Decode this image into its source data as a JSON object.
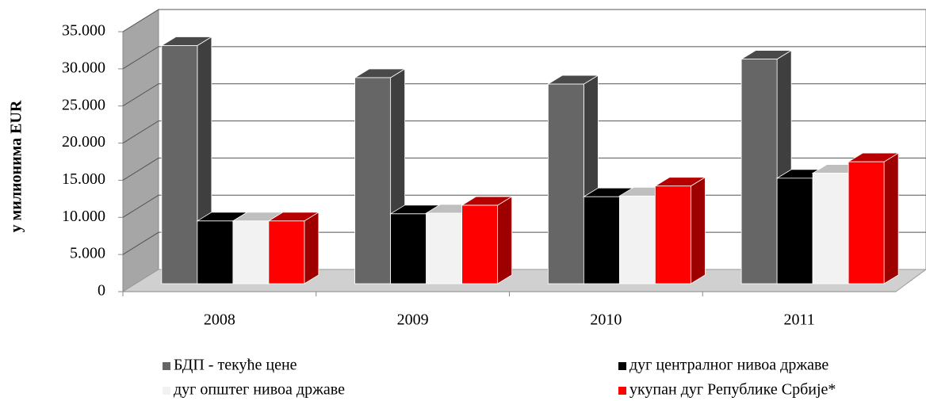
{
  "chart_data": {
    "type": "bar3d",
    "y_label": "у милионима EUR",
    "categories": [
      "2008",
      "2009",
      "2010",
      "2011"
    ],
    "series": [
      {
        "name": "БДП - текуће цене",
        "color": "#666666",
        "values": [
          33400,
          28900,
          28000,
          31500
        ]
      },
      {
        "name": "дуг централног нивоа државе",
        "color": "#000000",
        "values": [
          8800,
          9800,
          12200,
          14800
        ]
      },
      {
        "name": "дуг општег нивоа државе",
        "color": "#f2f2f2",
        "values": [
          8800,
          9900,
          12300,
          15500
        ]
      },
      {
        "name": "укупан дуг Републике Србије*",
        "color": "#ff0000",
        "values": [
          8800,
          11000,
          13700,
          17100
        ]
      }
    ],
    "ylim": [
      0,
      35000
    ],
    "yticks": [
      0,
      {
        "value": 5000,
        "label": "5.000"
      },
      {
        "value": 10000,
        "label": "10.000"
      },
      {
        "value": 15000,
        "label": "15.000"
      },
      {
        "value": 20000,
        "label": "20.000"
      },
      {
        "value": 25000,
        "label": "25.000"
      },
      {
        "value": 30000,
        "label": "30.000"
      },
      {
        "value": 35000,
        "label": "35.000"
      }
    ],
    "grid": true
  }
}
